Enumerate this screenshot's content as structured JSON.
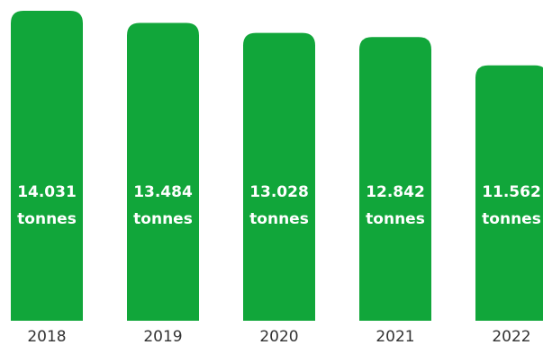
{
  "chart_data": {
    "type": "bar",
    "categories": [
      "2018",
      "2019",
      "2020",
      "2021",
      "2022"
    ],
    "values": [
      14031,
      13484,
      13028,
      12842,
      11562
    ],
    "value_labels": [
      "14.031",
      "13.484",
      "13.028",
      "12.842",
      "11.562"
    ],
    "unit_label": "tonnes",
    "title": "",
    "xlabel": "",
    "ylabel": "",
    "ylim": [
      0,
      14031
    ],
    "grid": false,
    "legend": "none"
  },
  "colors": {
    "bar": "#11a63a",
    "bar_text": "#ffffff",
    "axis_text": "#333333",
    "background": "#ffffff"
  }
}
